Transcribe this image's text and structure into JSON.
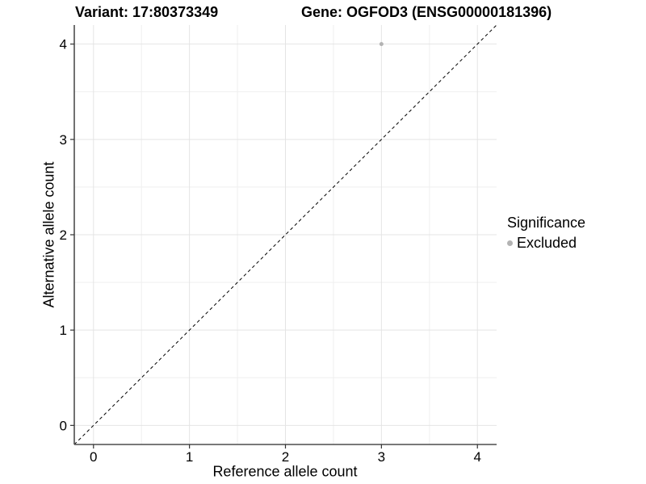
{
  "header": {
    "title_left": "Variant: 17:80373349",
    "title_right": "Gene: OGFOD3 (ENSG00000181396)"
  },
  "chart_data": {
    "type": "scatter",
    "title_left": "Variant: 17:80373349",
    "title_right": "Gene: OGFOD3 (ENSG00000181396)",
    "xlabel": "Reference allele count",
    "ylabel": "Alternative allele count",
    "xlim": [
      -0.2,
      4.2
    ],
    "ylim": [
      -0.2,
      4.2
    ],
    "xticks": [
      0,
      1,
      2,
      3,
      4
    ],
    "yticks": [
      0,
      1,
      2,
      3,
      4
    ],
    "minor_xticks": [
      0.5,
      1.5,
      2.5,
      3.5
    ],
    "minor_yticks": [
      0.5,
      1.5,
      2.5,
      3.5
    ],
    "grid": true,
    "legend_position": "right",
    "identity_line": {
      "style": "dashed",
      "from": [
        -0.2,
        -0.2
      ],
      "to": [
        4.2,
        4.2
      ],
      "color": "#000000"
    },
    "series": [
      {
        "name": "Excluded",
        "color": "#b3b3b3",
        "points": [
          {
            "x": 3,
            "y": 4
          }
        ]
      }
    ],
    "legend": {
      "title": "Significance",
      "entries": [
        {
          "label": "Excluded",
          "color": "#b3b3b3"
        }
      ]
    },
    "style": {
      "major_grid_color": "#e4e4e4",
      "minor_grid_color": "#efefef",
      "axis_line_color": "#4d4d4d",
      "tick_color": "#333333",
      "tick_label_color": "#000000",
      "tick_label_size": 17
    }
  }
}
